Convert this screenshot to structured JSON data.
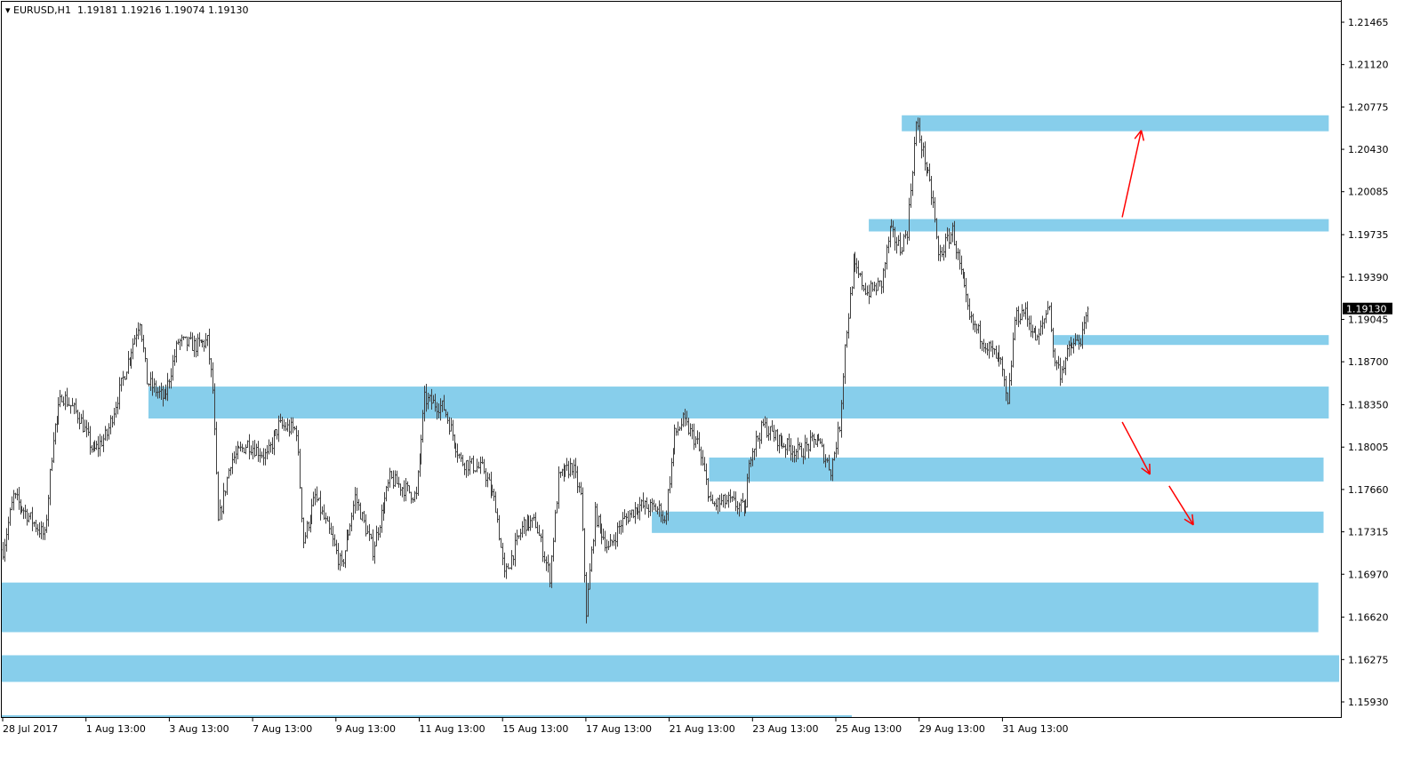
{
  "header": {
    "symbol": "EURUSD,H1",
    "open": "1.19181",
    "high": "1.19216",
    "low": "1.19074",
    "close": "1.19130"
  },
  "colors": {
    "zone": "#87CEEB",
    "arrow": "#FF0000",
    "bars": "#404040",
    "current_price_bg": "#000000"
  },
  "chart_data": {
    "type": "ohlc",
    "symbol": "EURUSD",
    "timeframe": "H1",
    "current_price": "1.19130",
    "ylim": [
      1.1578,
      1.2163
    ],
    "y_ticks": [
      "1.21465",
      "1.21120",
      "1.20775",
      "1.20430",
      "1.20085",
      "1.19735",
      "1.19390",
      "1.19045",
      "1.18700",
      "1.18350",
      "1.18005",
      "1.17660",
      "1.17315",
      "1.16970",
      "1.16620",
      "1.16275",
      "1.15930"
    ],
    "x_ticks": [
      "28 Jul 2017",
      "1 Aug 13:00",
      "3 Aug 13:00",
      "7 Aug 13:00",
      "9 Aug 13:00",
      "11 Aug 13:00",
      "15 Aug 13:00",
      "17 Aug 13:00",
      "21 Aug 13:00",
      "23 Aug 13:00",
      "25 Aug 13:00",
      "29 Aug 13:00",
      "31 Aug 13:00"
    ],
    "bars_per_tick": 48,
    "total_bars_visible": 770,
    "price_path": [
      [
        0,
        1.17169
      ],
      [
        6,
        1.17602
      ],
      [
        14,
        1.17458
      ],
      [
        24,
        1.17277
      ],
      [
        29,
        1.18108
      ],
      [
        34,
        1.18433
      ],
      [
        44,
        1.18252
      ],
      [
        52,
        1.17963
      ],
      [
        60,
        1.18108
      ],
      [
        70,
        1.18613
      ],
      [
        79,
        1.19046
      ],
      [
        83,
        1.18541
      ],
      [
        93,
        1.18396
      ],
      [
        101,
        1.18866
      ],
      [
        111,
        1.1883
      ],
      [
        118,
        1.18866
      ],
      [
        121,
        1.18469
      ],
      [
        124,
        1.17386
      ],
      [
        131,
        1.17891
      ],
      [
        141,
        1.18035
      ],
      [
        152,
        1.17927
      ],
      [
        159,
        1.1818
      ],
      [
        169,
        1.18144
      ],
      [
        173,
        1.17241
      ],
      [
        180,
        1.17602
      ],
      [
        188,
        1.17313
      ],
      [
        195,
        1.17025
      ],
      [
        203,
        1.17602
      ],
      [
        213,
        1.17169
      ],
      [
        223,
        1.17747
      ],
      [
        238,
        1.17602
      ],
      [
        243,
        1.18396
      ],
      [
        254,
        1.18324
      ],
      [
        264,
        1.17891
      ],
      [
        277,
        1.17819
      ],
      [
        284,
        1.1753
      ],
      [
        289,
        1.16952
      ],
      [
        300,
        1.17386
      ],
      [
        307,
        1.17386
      ],
      [
        315,
        1.16952
      ],
      [
        320,
        1.17747
      ],
      [
        328,
        1.17855
      ],
      [
        333,
        1.17602
      ],
      [
        336,
        1.16664
      ],
      [
        341,
        1.17458
      ],
      [
        349,
        1.17169
      ],
      [
        356,
        1.17386
      ],
      [
        366,
        1.1753
      ],
      [
        379,
        1.17494
      ],
      [
        381,
        1.17386
      ],
      [
        387,
        1.18108
      ],
      [
        392,
        1.18216
      ],
      [
        400,
        1.18035
      ],
      [
        408,
        1.1753
      ],
      [
        418,
        1.17566
      ],
      [
        428,
        1.17494
      ],
      [
        430,
        1.17927
      ],
      [
        438,
        1.1818
      ],
      [
        449,
        1.18035
      ],
      [
        459,
        1.17963
      ],
      [
        469,
        1.18072
      ],
      [
        477,
        1.17819
      ],
      [
        482,
        1.1818
      ],
      [
        485,
        1.1883
      ],
      [
        490,
        1.19479
      ],
      [
        498,
        1.19263
      ],
      [
        506,
        1.19335
      ],
      [
        511,
        1.19768
      ],
      [
        517,
        1.19624
      ],
      [
        521,
        1.19768
      ],
      [
        526,
        1.20635
      ],
      [
        531,
        1.20346
      ],
      [
        536,
        1.19985
      ],
      [
        539,
        1.19552
      ],
      [
        547,
        1.19768
      ],
      [
        557,
        1.19046
      ],
      [
        567,
        1.1883
      ],
      [
        575,
        1.18685
      ],
      [
        579,
        1.18324
      ],
      [
        583,
        1.19046
      ],
      [
        588,
        1.19118
      ],
      [
        596,
        1.18866
      ],
      [
        603,
        1.19191
      ],
      [
        605,
        1.18757
      ],
      [
        609,
        1.18613
      ],
      [
        614,
        1.18794
      ],
      [
        622,
        1.18902
      ],
      [
        625,
        1.1913
      ]
    ],
    "zones": [
      {
        "from_bar": 518,
        "to_bar": 764,
        "top": 1.20707,
        "bottom": 1.20577
      },
      {
        "from_bar": 499,
        "to_bar": 764,
        "top": 1.19862,
        "bottom": 1.19761
      },
      {
        "from_bar": 605,
        "to_bar": 764,
        "top": 1.18917,
        "bottom": 1.18837
      },
      {
        "from_bar": 84,
        "to_bar": 764,
        "top": 1.18498,
        "bottom": 1.18238
      },
      {
        "from_bar": 407,
        "to_bar": 761,
        "top": 1.1792,
        "bottom": 1.17725
      },
      {
        "from_bar": 374,
        "to_bar": 761,
        "top": 1.1748,
        "bottom": 1.17306
      },
      {
        "from_bar": -1,
        "to_bar": 758,
        "top": 1.16902,
        "bottom": 1.16498
      },
      {
        "from_bar": -1,
        "to_bar": 770,
        "top": 1.1631,
        "bottom": 1.16093
      }
    ],
    "arrows": [
      {
        "from": [
          645,
          1.19877
        ],
        "to": [
          656,
          1.20584
        ]
      },
      {
        "from": [
          645,
          1.18209
        ],
        "to": [
          661,
          1.17783
        ]
      },
      {
        "from": [
          672,
          1.17689
        ],
        "to": [
          686,
          1.17372
        ]
      }
    ]
  }
}
